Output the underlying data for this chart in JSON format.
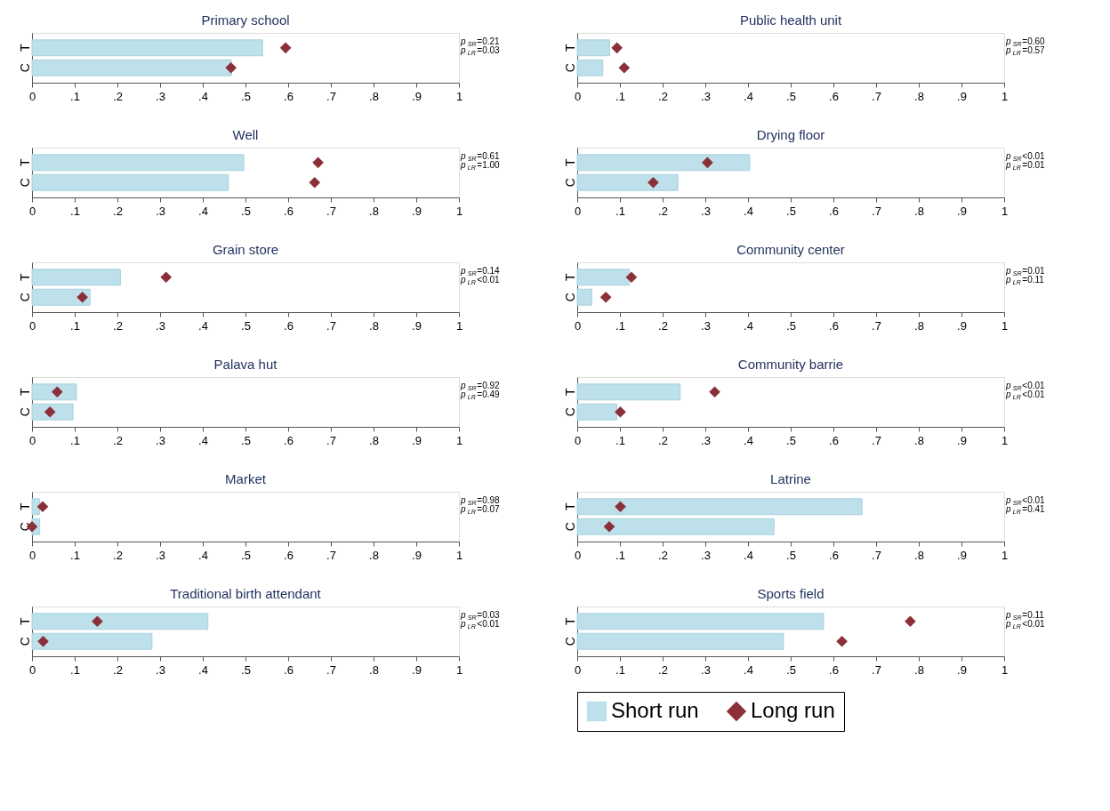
{
  "chart_data": [
    {
      "type": "bar",
      "orientation": "horizontal",
      "title": "Primary school",
      "categories": [
        "T",
        "C"
      ],
      "series": [
        {
          "color": "#bde0ea",
          "values": [
            0.54,
            0.467
          ]
        },
        {
          "type": "scatter",
          "color": "#8b3038",
          "values": [
            0.594,
            0.466
          ]
        }
      ],
      "marker": "diamond",
      "xlim": [
        0,
        1
      ],
      "xticks": [
        0,
        {
          "value": 0.1,
          "label": ".1"
        },
        {
          "value": 0.2,
          "label": ".2"
        },
        {
          "value": 0.3,
          "label": ".3"
        },
        {
          "value": 0.4,
          "label": ".4"
        },
        {
          "value": 0.5,
          "label": ".5"
        },
        {
          "value": 0.6,
          "label": ".6"
        },
        {
          "value": 0.7,
          "label": ".7"
        },
        {
          "value": 0.8,
          "label": ".8"
        },
        {
          "value": 0.9,
          "label": ".9"
        },
        1
      ],
      "annotations": [
        "p$_{SR}$=0.21",
        "p$_{LR}$=0.03"
      ]
    },
    {
      "type": "bar",
      "orientation": "horizontal",
      "title": "Public health unit",
      "categories": [
        "T",
        "C"
      ],
      "series": [
        {
          "color": "#bde0ea",
          "values": [
            0.076,
            0.06
          ]
        },
        {
          "type": "scatter",
          "color": "#8b3038",
          "values": [
            0.093,
            0.11
          ]
        }
      ],
      "marker": "diamond",
      "xlim": [
        0,
        1
      ],
      "xticks": [
        0,
        {
          "value": 0.1,
          "label": ".1"
        },
        {
          "value": 0.2,
          "label": ".2"
        },
        {
          "value": 0.3,
          "label": ".3"
        },
        {
          "value": 0.4,
          "label": ".4"
        },
        {
          "value": 0.5,
          "label": ".5"
        },
        {
          "value": 0.6,
          "label": ".6"
        },
        {
          "value": 0.7,
          "label": ".7"
        },
        {
          "value": 0.8,
          "label": ".8"
        },
        {
          "value": 0.9,
          "label": ".9"
        },
        1
      ],
      "annotations": [
        "p$_{SR}$=0.60",
        "p$_{LR}$=0.57"
      ]
    },
    {
      "type": "bar",
      "orientation": "horizontal",
      "title": "Well",
      "categories": [
        "T",
        "C"
      ],
      "series": [
        {
          "color": "#bde0ea",
          "values": [
            0.496,
            0.46
          ]
        },
        {
          "type": "scatter",
          "color": "#8b3038",
          "values": [
            0.67,
            0.662
          ]
        }
      ],
      "marker": "diamond",
      "xlim": [
        0,
        1
      ],
      "xticks": [
        0,
        {
          "value": 0.1,
          "label": ".1"
        },
        {
          "value": 0.2,
          "label": ".2"
        },
        {
          "value": 0.3,
          "label": ".3"
        },
        {
          "value": 0.4,
          "label": ".4"
        },
        {
          "value": 0.5,
          "label": ".5"
        },
        {
          "value": 0.6,
          "label": ".6"
        },
        {
          "value": 0.7,
          "label": ".7"
        },
        {
          "value": 0.8,
          "label": ".8"
        },
        {
          "value": 0.9,
          "label": ".9"
        },
        1
      ],
      "annotations": [
        "p$_{SR}$=0.61",
        "p$_{LR}$=1.00"
      ]
    },
    {
      "type": "bar",
      "orientation": "horizontal",
      "title": "Drying floor",
      "categories": [
        "T",
        "C"
      ],
      "series": [
        {
          "color": "#bde0ea",
          "values": [
            0.404,
            0.236
          ]
        },
        {
          "type": "scatter",
          "color": "#8b3038",
          "values": [
            0.305,
            0.178
          ]
        }
      ],
      "marker": "diamond",
      "xlim": [
        0,
        1
      ],
      "xticks": [
        0,
        {
          "value": 0.1,
          "label": ".1"
        },
        {
          "value": 0.2,
          "label": ".2"
        },
        {
          "value": 0.3,
          "label": ".3"
        },
        {
          "value": 0.4,
          "label": ".4"
        },
        {
          "value": 0.5,
          "label": ".5"
        },
        {
          "value": 0.6,
          "label": ".6"
        },
        {
          "value": 0.7,
          "label": ".7"
        },
        {
          "value": 0.8,
          "label": ".8"
        },
        {
          "value": 0.9,
          "label": ".9"
        },
        1
      ],
      "annotations": [
        "p$_{SR}$<0.01",
        "p$_{LR}$=0.01"
      ]
    },
    {
      "type": "bar",
      "orientation": "horizontal",
      "title": "Grain store",
      "categories": [
        "T",
        "C"
      ],
      "series": [
        {
          "color": "#bde0ea",
          "values": [
            0.207,
            0.136
          ]
        },
        {
          "type": "scatter",
          "color": "#8b3038",
          "values": [
            0.314,
            0.118
          ]
        }
      ],
      "marker": "diamond",
      "xlim": [
        0,
        1
      ],
      "xticks": [
        0,
        {
          "value": 0.1,
          "label": ".1"
        },
        {
          "value": 0.2,
          "label": ".2"
        },
        {
          "value": 0.3,
          "label": ".3"
        },
        {
          "value": 0.4,
          "label": ".4"
        },
        {
          "value": 0.5,
          "label": ".5"
        },
        {
          "value": 0.6,
          "label": ".6"
        },
        {
          "value": 0.7,
          "label": ".7"
        },
        {
          "value": 0.8,
          "label": ".8"
        },
        {
          "value": 0.9,
          "label": ".9"
        },
        1
      ],
      "annotations": [
        "p$_{SR}$=0.14",
        "p$_{LR}$<0.01"
      ]
    },
    {
      "type": "bar",
      "orientation": "horizontal",
      "title": "Community center",
      "categories": [
        "T",
        "C"
      ],
      "series": [
        {
          "color": "#bde0ea",
          "values": [
            0.122,
            0.034
          ]
        },
        {
          "type": "scatter",
          "color": "#8b3038",
          "values": [
            0.127,
            0.067
          ]
        }
      ],
      "marker": "diamond",
      "xlim": [
        0,
        1
      ],
      "xticks": [
        0,
        {
          "value": 0.1,
          "label": ".1"
        },
        {
          "value": 0.2,
          "label": ".2"
        },
        {
          "value": 0.3,
          "label": ".3"
        },
        {
          "value": 0.4,
          "label": ".4"
        },
        {
          "value": 0.5,
          "label": ".5"
        },
        {
          "value": 0.6,
          "label": ".6"
        },
        {
          "value": 0.7,
          "label": ".7"
        },
        {
          "value": 0.8,
          "label": ".8"
        },
        {
          "value": 0.9,
          "label": ".9"
        },
        1
      ],
      "annotations": [
        "p$_{SR}$=0.01",
        "p$_{LR}$=0.11"
      ]
    },
    {
      "type": "bar",
      "orientation": "horizontal",
      "title": "Palava hut",
      "categories": [
        "T",
        "C"
      ],
      "series": [
        {
          "color": "#bde0ea",
          "values": [
            0.104,
            0.096
          ]
        },
        {
          "type": "scatter",
          "color": "#8b3038",
          "values": [
            0.059,
            0.042
          ]
        }
      ],
      "marker": "diamond",
      "xlim": [
        0,
        1
      ],
      "xticks": [
        0,
        {
          "value": 0.1,
          "label": ".1"
        },
        {
          "value": 0.2,
          "label": ".2"
        },
        {
          "value": 0.3,
          "label": ".3"
        },
        {
          "value": 0.4,
          "label": ".4"
        },
        {
          "value": 0.5,
          "label": ".5"
        },
        {
          "value": 0.6,
          "label": ".6"
        },
        {
          "value": 0.7,
          "label": ".7"
        },
        {
          "value": 0.8,
          "label": ".8"
        },
        {
          "value": 0.9,
          "label": ".9"
        },
        1
      ],
      "annotations": [
        "p$_{SR}$=0.92",
        "p$_{LR}$=0.49"
      ]
    },
    {
      "type": "bar",
      "orientation": "horizontal",
      "title": "Community barrie",
      "categories": [
        "T",
        "C"
      ],
      "series": [
        {
          "color": "#bde0ea",
          "values": [
            0.241,
            0.093
          ]
        },
        {
          "type": "scatter",
          "color": "#8b3038",
          "values": [
            0.322,
            0.101
          ]
        }
      ],
      "marker": "diamond",
      "xlim": [
        0,
        1
      ],
      "xticks": [
        0,
        {
          "value": 0.1,
          "label": ".1"
        },
        {
          "value": 0.2,
          "label": ".2"
        },
        {
          "value": 0.3,
          "label": ".3"
        },
        {
          "value": 0.4,
          "label": ".4"
        },
        {
          "value": 0.5,
          "label": ".5"
        },
        {
          "value": 0.6,
          "label": ".6"
        },
        {
          "value": 0.7,
          "label": ".7"
        },
        {
          "value": 0.8,
          "label": ".8"
        },
        {
          "value": 0.9,
          "label": ".9"
        },
        1
      ],
      "annotations": [
        "p$_{SR}$<0.01",
        "p$_{LR}$<0.01"
      ]
    },
    {
      "type": "bar",
      "orientation": "horizontal",
      "title": "Market",
      "categories": [
        "T",
        "C"
      ],
      "series": [
        {
          "color": "#bde0ea",
          "values": [
            0.018,
            0.018
          ]
        },
        {
          "type": "scatter",
          "color": "#8b3038",
          "values": [
            0.025,
            0.0
          ]
        }
      ],
      "marker": "diamond",
      "xlim": [
        0,
        1
      ],
      "xticks": [
        0,
        {
          "value": 0.1,
          "label": ".1"
        },
        {
          "value": 0.2,
          "label": ".2"
        },
        {
          "value": 0.3,
          "label": ".3"
        },
        {
          "value": 0.4,
          "label": ".4"
        },
        {
          "value": 0.5,
          "label": ".5"
        },
        {
          "value": 0.6,
          "label": ".6"
        },
        {
          "value": 0.7,
          "label": ".7"
        },
        {
          "value": 0.8,
          "label": ".8"
        },
        {
          "value": 0.9,
          "label": ".9"
        },
        1
      ],
      "annotations": [
        "p$_{SR}$=0.98",
        "p$_{LR}$=0.07"
      ]
    },
    {
      "type": "bar",
      "orientation": "horizontal",
      "title": "Latrine",
      "categories": [
        "T",
        "C"
      ],
      "series": [
        {
          "color": "#bde0ea",
          "values": [
            0.667,
            0.461
          ]
        },
        {
          "type": "scatter",
          "color": "#8b3038",
          "values": [
            0.101,
            0.075
          ]
        }
      ],
      "marker": "diamond",
      "xlim": [
        0,
        1
      ],
      "xticks": [
        0,
        {
          "value": 0.1,
          "label": ".1"
        },
        {
          "value": 0.2,
          "label": ".2"
        },
        {
          "value": 0.3,
          "label": ".3"
        },
        {
          "value": 0.4,
          "label": ".4"
        },
        {
          "value": 0.5,
          "label": ".5"
        },
        {
          "value": 0.6,
          "label": ".6"
        },
        {
          "value": 0.7,
          "label": ".7"
        },
        {
          "value": 0.8,
          "label": ".8"
        },
        {
          "value": 0.9,
          "label": ".9"
        },
        1
      ],
      "annotations": [
        "p$_{SR}$<0.01",
        "p$_{LR}$=0.41"
      ]
    },
    {
      "type": "bar",
      "orientation": "horizontal",
      "title": "Traditional birth attendant",
      "categories": [
        "T",
        "C"
      ],
      "series": [
        {
          "color": "#bde0ea",
          "values": [
            0.412,
            0.281
          ]
        },
        {
          "type": "scatter",
          "color": "#8b3038",
          "values": [
            0.153,
            0.026
          ]
        }
      ],
      "marker": "diamond",
      "xlim": [
        0,
        1
      ],
      "xticks": [
        0,
        {
          "value": 0.1,
          "label": ".1"
        },
        {
          "value": 0.2,
          "label": ".2"
        },
        {
          "value": 0.3,
          "label": ".3"
        },
        {
          "value": 0.4,
          "label": ".4"
        },
        {
          "value": 0.5,
          "label": ".5"
        },
        {
          "value": 0.6,
          "label": ".6"
        },
        {
          "value": 0.7,
          "label": ".7"
        },
        {
          "value": 0.8,
          "label": ".8"
        },
        {
          "value": 0.9,
          "label": ".9"
        },
        1
      ],
      "annotations": [
        "p$_{SR}$=0.03",
        "p$_{LR}$<0.01"
      ]
    },
    {
      "type": "bar",
      "orientation": "horizontal",
      "title": "Sports field",
      "categories": [
        "T",
        "C"
      ],
      "series": [
        {
          "name": "Short run",
          "color": "#bde0ea",
          "values": [
            0.577,
            0.483
          ]
        },
        {
          "name": "Long run",
          "type": "scatter",
          "color": "#8b3038",
          "values": [
            0.78,
            0.62
          ]
        }
      ],
      "marker": "diamond",
      "legend": "bottom",
      "xlim": [
        0,
        1
      ],
      "xticks": [
        0,
        {
          "value": 0.1,
          "label": ".1"
        },
        {
          "value": 0.2,
          "label": ".2"
        },
        {
          "value": 0.3,
          "label": ".3"
        },
        {
          "value": 0.4,
          "label": ".4"
        },
        {
          "value": 0.5,
          "label": ".5"
        },
        {
          "value": 0.6,
          "label": ".6"
        },
        {
          "value": 0.7,
          "label": ".7"
        },
        {
          "value": 0.8,
          "label": ".8"
        },
        {
          "value": 0.9,
          "label": ".9"
        },
        1
      ],
      "annotations": [
        "p$_{SR}$=0.11",
        "p$_{LR}$<0.01"
      ]
    }
  ]
}
